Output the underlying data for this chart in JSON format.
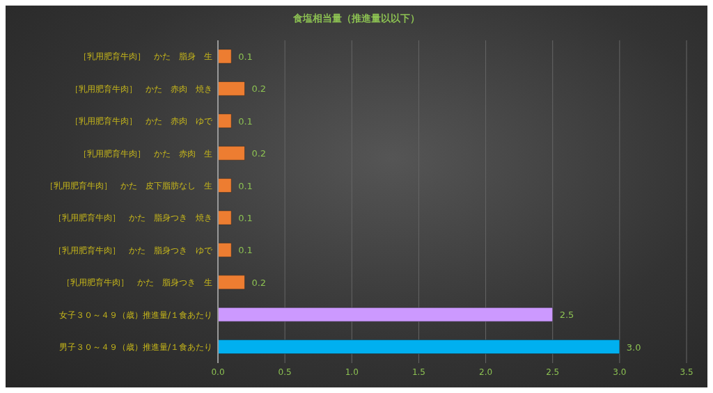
{
  "chart_data": {
    "type": "bar",
    "orientation": "horizontal",
    "title": "食塩相当量（推進量以以下）",
    "categories": [
      "［乳用肥育牛肉］　かた　脂身　生",
      "［乳用肥育牛肉］　かた　赤肉　焼き",
      "［乳用肥育牛肉］　かた　赤肉　ゆで",
      "［乳用肥育牛肉］　かた　赤肉　生",
      "［乳用肥育牛肉］　かた　皮下脂肪なし　生",
      "［乳用肥育牛肉］　かた　脂身つき　焼き",
      "［乳用肥育牛肉］　かた　脂身つき　ゆで",
      "［乳用肥育牛肉］　かた　脂身つき　生",
      "女子３０～４９（歳）推進量/１食あたり",
      "男子３０～４９（歳）推進量/１食あたり"
    ],
    "values": [
      0.1,
      0.2,
      0.1,
      0.2,
      0.1,
      0.1,
      0.1,
      0.2,
      2.5,
      3.0
    ],
    "value_labels": [
      "0.1",
      "0.2",
      "0.1",
      "0.2",
      "0.1",
      "0.1",
      "0.1",
      "0.2",
      "2.5",
      "3.0"
    ],
    "colors": [
      "#ed7d31",
      "#ed7d31",
      "#ed7d31",
      "#ed7d31",
      "#ed7d31",
      "#ed7d31",
      "#ed7d31",
      "#ed7d31",
      "#cc99ff",
      "#00b0f0"
    ],
    "xlim": [
      0,
      3.5
    ],
    "xticks": [
      {
        "value": 0,
        "label": "0.0"
      },
      {
        "value": 0.5,
        "label": "0.5"
      },
      {
        "value": 1,
        "label": "1.0"
      },
      {
        "value": 1.5,
        "label": "1.5"
      },
      {
        "value": 2,
        "label": "2.0"
      },
      {
        "value": 2.5,
        "label": "2.5"
      },
      {
        "value": 3,
        "label": "3.0"
      },
      {
        "value": 3.5,
        "label": "3.5"
      }
    ],
    "grid": "x",
    "legend": false
  }
}
